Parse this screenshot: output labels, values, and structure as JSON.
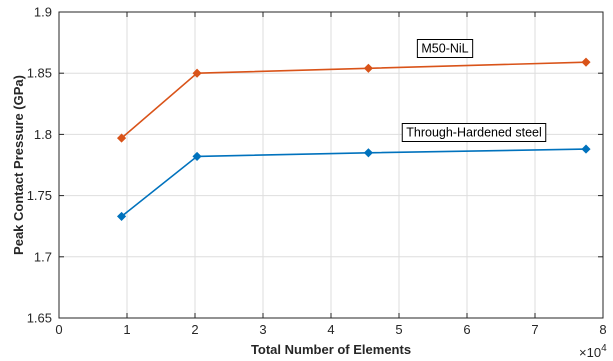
{
  "chart_data": {
    "type": "line",
    "xlabel": "Total Number of Elements",
    "ylabel": "Peak Contact Pressure (GPa)",
    "x_exponent_label": "×10",
    "x_exponent_power": "4",
    "xlim": [
      0,
      8
    ],
    "ylim": [
      1.65,
      1.9
    ],
    "x_scale_factor": 10000,
    "x_tick_values": [
      0,
      1,
      2,
      3,
      4,
      5,
      6,
      7,
      8
    ],
    "x_tick_labels": [
      "0",
      "1",
      "2",
      "3",
      "4",
      "5",
      "6",
      "7",
      "8"
    ],
    "y_tick_values": [
      1.65,
      1.7,
      1.75,
      1.8,
      1.85,
      1.9
    ],
    "y_tick_labels": [
      "1.65",
      "1.7",
      "1.75",
      "1.8",
      "1.85",
      "1.9"
    ],
    "grid": true,
    "series": [
      {
        "name": "M50-NiL",
        "color": "#d95319",
        "marker": "diamond",
        "x": [
          0.92,
          2.03,
          4.55,
          7.75
        ],
        "y": [
          1.797,
          1.85,
          1.854,
          1.859
        ]
      },
      {
        "name": "Through-Hardened steel",
        "color": "#0072bd",
        "marker": "diamond",
        "x": [
          0.92,
          2.03,
          4.55,
          7.75
        ],
        "y": [
          1.733,
          1.782,
          1.785,
          1.788
        ]
      }
    ],
    "annotations": [
      {
        "text": "M50-NiL",
        "series": 0
      },
      {
        "text": "Through-Hardened steel",
        "series": 1
      }
    ]
  }
}
